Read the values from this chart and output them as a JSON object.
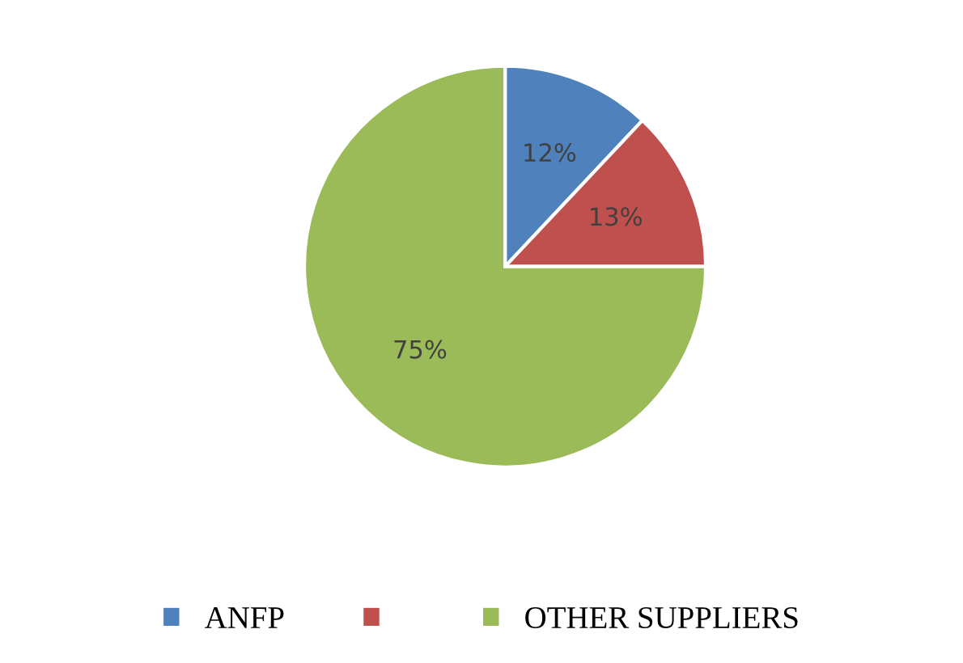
{
  "chart_data": {
    "type": "pie",
    "categories": [
      "ANFP",
      null,
      "OTHER SUPPLIERS"
    ],
    "values": [
      12,
      13,
      75
    ],
    "colors": [
      "#4f81bd",
      "#c0504d",
      "#9bbb59"
    ],
    "value_labels": [
      "12%",
      "13%",
      "75%"
    ],
    "legend": "bottom"
  }
}
